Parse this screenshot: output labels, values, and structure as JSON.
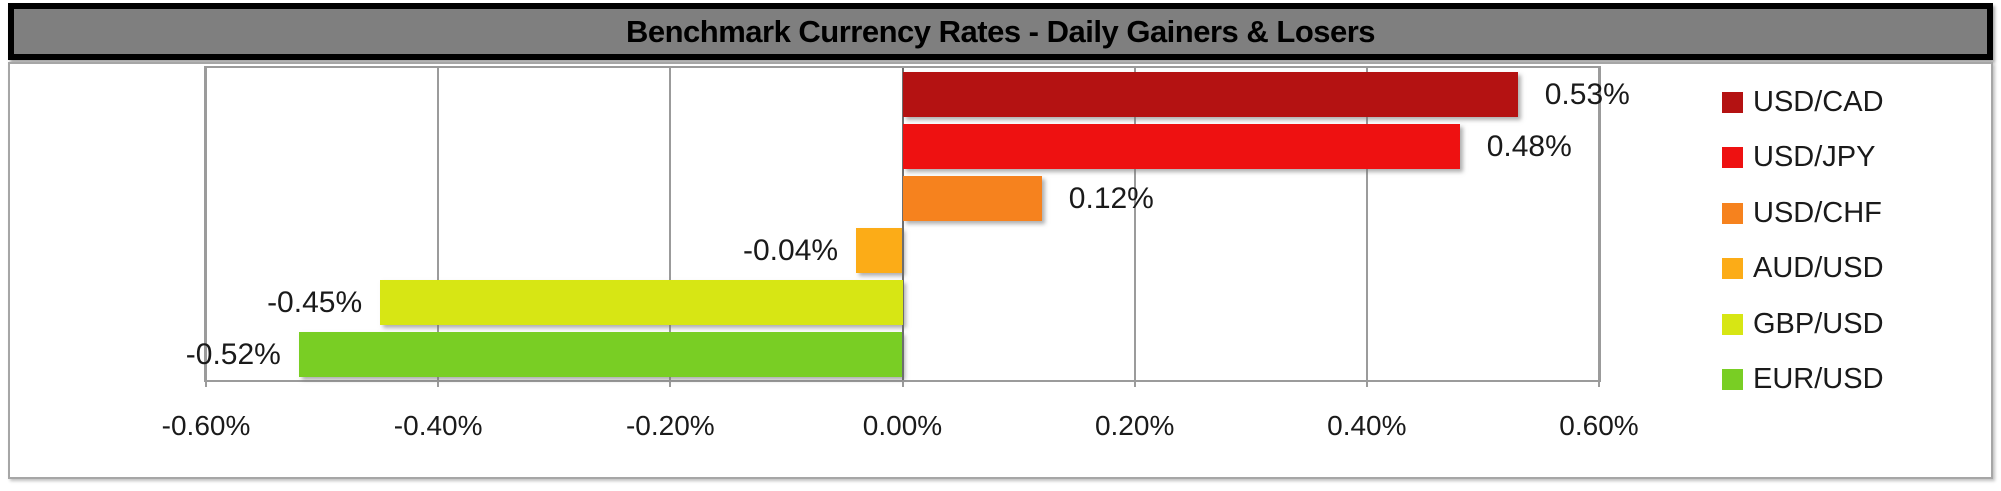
{
  "title": "Benchmark Currency Rates - Daily Gainers & Losers",
  "chart_data": {
    "type": "bar",
    "orientation": "horizontal",
    "title": "Benchmark Currency Rates - Daily Gainers & Losers",
    "categories": [
      "USD/CAD",
      "USD/JPY",
      "USD/CHF",
      "AUD/USD",
      "GBP/USD",
      "EUR/USD"
    ],
    "values": [
      0.53,
      0.48,
      0.12,
      -0.04,
      -0.45,
      -0.52
    ],
    "value_labels": [
      "0.53%",
      "0.48%",
      "0.12%",
      "-0.04%",
      "-0.45%",
      "-0.52%"
    ],
    "bar_colors": [
      "#B41212",
      "#EE1111",
      "#F6821E",
      "#FCAC17",
      "#D7E614",
      "#79CE24"
    ],
    "x_ticks": [
      {
        "value": -0.6,
        "label": "-0.60%"
      },
      {
        "value": -0.4,
        "label": "-0.40%"
      },
      {
        "value": -0.2,
        "label": "-0.20%"
      },
      {
        "value": 0.0,
        "label": "0.00%"
      },
      {
        "value": 0.2,
        "label": "0.20%"
      },
      {
        "value": 0.4,
        "label": "0.40%"
      },
      {
        "value": 0.6,
        "label": "0.60%"
      }
    ],
    "xlim": [
      -0.6,
      0.6
    ],
    "grid": true,
    "legend_position": "right",
    "legend": [
      {
        "label": "USD/CAD",
        "color": "#B41212"
      },
      {
        "label": "USD/JPY",
        "color": "#EE1111"
      },
      {
        "label": "USD/CHF",
        "color": "#F6821E"
      },
      {
        "label": "AUD/USD",
        "color": "#FCAC17"
      },
      {
        "label": "GBP/USD",
        "color": "#D7E614"
      },
      {
        "label": "EUR/USD",
        "color": "#79CE24"
      }
    ]
  },
  "colors": {
    "title_bg": "#7F7F7F",
    "title_text": "#000000",
    "title_border": "#000000",
    "chart_bg": "#FFFFFF",
    "chart_border": "#A6A6A6",
    "gridline": "#9B9B9B",
    "zero_line": "#6F6F6F",
    "label_text": "#1A1A1A"
  }
}
